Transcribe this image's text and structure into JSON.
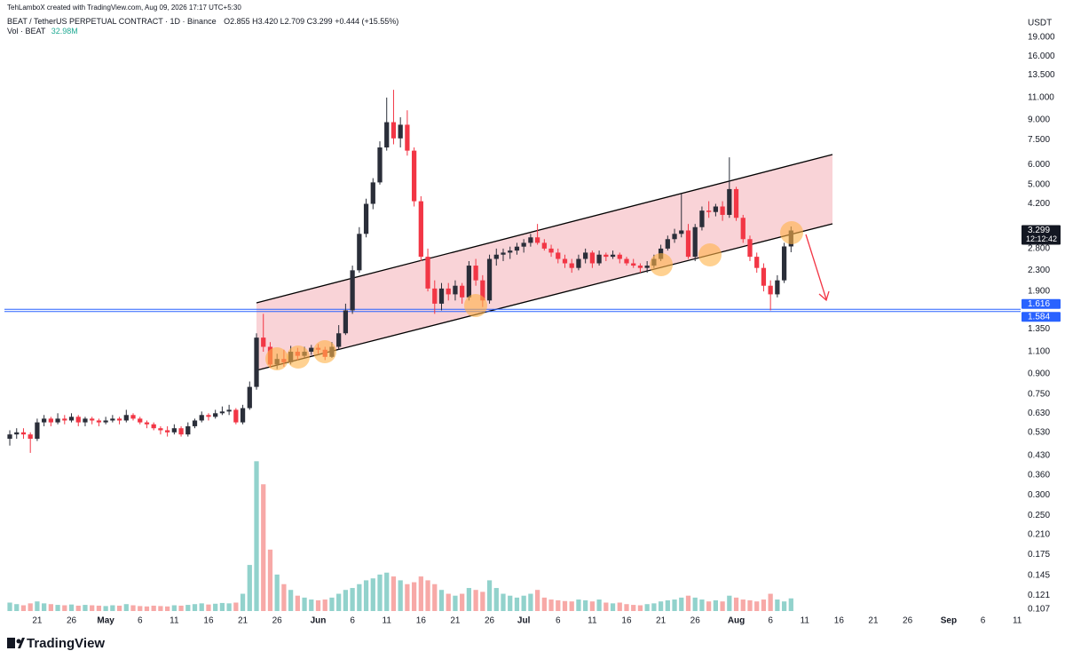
{
  "chart_data": {
    "type": "candlestick",
    "attribution": "TehLamboX created with TradingView.com, Aug 09, 2026 17:17 UTC+5:30",
    "title": "BEAT / TetherUS PERPETUAL CONTRACT · 1D · Binance",
    "ohlc": "O2.855 H3.420 L2.709 C3.299 +0.444 (+15.55%)",
    "volume_label": "Vol · BEAT",
    "volume_value": "32.98M",
    "currency": "USDT",
    "countdown": "12:12:42",
    "brand": "TradingView",
    "log_scale": true,
    "grid": false,
    "up_color": "#2a2e39",
    "down_color": "#f23645",
    "ylim": [
      0.105,
      22.3
    ],
    "yticks": [
      {
        "value": 19,
        "label": "19.000"
      },
      {
        "value": 16,
        "label": "16.000"
      },
      {
        "value": 13.5,
        "label": "13.500"
      },
      {
        "value": 11,
        "label": "11.000"
      },
      {
        "value": 9,
        "label": "9.000"
      },
      {
        "value": 7.5,
        "label": "7.500"
      },
      {
        "value": 6,
        "label": "6.000"
      },
      {
        "value": 5,
        "label": "5.000"
      },
      {
        "value": 4.2,
        "label": "4.200"
      },
      {
        "value": 2.8,
        "label": "2.800"
      },
      {
        "value": 2.3,
        "label": "2.300"
      },
      {
        "value": 1.9,
        "label": "1.900"
      },
      {
        "value": 1.35,
        "label": "1.350"
      },
      {
        "value": 1.1,
        "label": "1.100"
      },
      {
        "value": 0.9,
        "label": "0.900"
      },
      {
        "value": 0.75,
        "label": "0.750"
      },
      {
        "value": 0.63,
        "label": "0.630"
      },
      {
        "value": 0.53,
        "label": "0.530"
      },
      {
        "value": 0.43,
        "label": "0.430"
      },
      {
        "value": 0.36,
        "label": "0.360"
      },
      {
        "value": 0.3,
        "label": "0.300"
      },
      {
        "value": 0.25,
        "label": "0.250"
      },
      {
        "value": 0.21,
        "label": "0.210"
      },
      {
        "value": 0.175,
        "label": "0.175"
      },
      {
        "value": 0.145,
        "label": "0.145"
      },
      {
        "value": 0.121,
        "label": "0.121"
      },
      {
        "value": 0.107,
        "label": "0.107"
      }
    ],
    "xlim": [
      -0.78,
      147.5
    ],
    "xticks": [
      {
        "value": 4,
        "label": "21"
      },
      {
        "value": 9,
        "label": "26"
      },
      {
        "value": 14,
        "label": "May"
      },
      {
        "value": 19,
        "label": "6"
      },
      {
        "value": 24,
        "label": "11"
      },
      {
        "value": 29,
        "label": "16"
      },
      {
        "value": 34,
        "label": "21"
      },
      {
        "value": 39,
        "label": "26"
      },
      {
        "value": 45,
        "label": "Jun"
      },
      {
        "value": 50,
        "label": "6"
      },
      {
        "value": 55,
        "label": "11"
      },
      {
        "value": 60,
        "label": "16"
      },
      {
        "value": 65,
        "label": "21"
      },
      {
        "value": 70,
        "label": "26"
      },
      {
        "value": 75,
        "label": "Jul"
      },
      {
        "value": 80,
        "label": "6"
      },
      {
        "value": 85,
        "label": "11"
      },
      {
        "value": 90,
        "label": "16"
      },
      {
        "value": 95,
        "label": "21"
      },
      {
        "value": 100,
        "label": "26"
      },
      {
        "value": 106,
        "label": "Aug"
      },
      {
        "value": 111,
        "label": "6"
      },
      {
        "value": 116,
        "label": "11"
      },
      {
        "value": 121,
        "label": "16"
      },
      {
        "value": 126,
        "label": "21"
      },
      {
        "value": 131,
        "label": "26"
      },
      {
        "value": 137,
        "label": "Sep"
      },
      {
        "value": 142,
        "label": "6"
      },
      {
        "value": 147,
        "label": "11"
      }
    ],
    "hlines": [
      1.616,
      1.584
    ],
    "hline_color": "#2962ff",
    "series": [
      {
        "name": "BEAT",
        "x": [
          0,
          1,
          2,
          3,
          4,
          5,
          6,
          7,
          8,
          9,
          10,
          11,
          12,
          13,
          14,
          15,
          16,
          17,
          18,
          19,
          20,
          21,
          22,
          23,
          24,
          25,
          26,
          27,
          28,
          29,
          30,
          31,
          32,
          33,
          34,
          35,
          36,
          37,
          38,
          39,
          40,
          41,
          42,
          43,
          44,
          45,
          46,
          47,
          48,
          49,
          50,
          51,
          52,
          53,
          54,
          55,
          56,
          57,
          58,
          59,
          60,
          61,
          62,
          63,
          64,
          65,
          66,
          67,
          68,
          69,
          70,
          71,
          72,
          73,
          74,
          75,
          76,
          77,
          78,
          79,
          80,
          81,
          82,
          83,
          84,
          85,
          86,
          87,
          88,
          89,
          90,
          91,
          92,
          93,
          94,
          95,
          96,
          97,
          98,
          99,
          100,
          101,
          102,
          103,
          104,
          105,
          106,
          107,
          108,
          109,
          110,
          111,
          112,
          113,
          114
        ],
        "open": [
          0.5,
          0.52,
          0.53,
          0.52,
          0.5,
          0.58,
          0.6,
          0.58,
          0.6,
          0.59,
          0.61,
          0.58,
          0.6,
          0.59,
          0.58,
          0.59,
          0.6,
          0.59,
          0.62,
          0.6,
          0.58,
          0.57,
          0.55,
          0.54,
          0.53,
          0.55,
          0.52,
          0.56,
          0.59,
          0.62,
          0.61,
          0.63,
          0.64,
          0.65,
          0.58,
          0.66,
          0.8,
          1.25,
          1.15,
          0.98,
          1.03,
          1.0,
          1.1,
          1.06,
          1.1,
          1.14,
          1.12,
          1.05,
          1.15,
          1.3,
          1.6,
          2.3,
          3.2,
          4.2,
          5.1,
          7.0,
          8.8,
          7.6,
          8.6,
          6.8,
          4.3,
          2.6,
          1.95,
          1.7,
          1.95,
          1.85,
          2.0,
          1.8,
          2.4,
          2.1,
          1.75,
          2.55,
          2.65,
          2.7,
          2.75,
          2.85,
          2.95,
          3.1,
          2.95,
          2.8,
          2.7,
          2.55,
          2.45,
          2.35,
          2.55,
          2.7,
          2.45,
          2.65,
          2.6,
          2.65,
          2.55,
          2.45,
          2.4,
          2.35,
          2.4,
          2.55,
          2.8,
          3.05,
          3.2,
          3.3,
          2.6,
          3.4,
          3.95,
          3.9,
          4.1,
          3.8,
          4.8,
          3.7,
          3.05,
          2.6,
          2.35,
          2.0,
          1.85,
          2.1,
          2.855
        ],
        "high": [
          0.54,
          0.55,
          0.55,
          0.53,
          0.6,
          0.62,
          0.61,
          0.63,
          0.62,
          0.63,
          0.62,
          0.61,
          0.61,
          0.6,
          0.61,
          0.62,
          0.61,
          0.65,
          0.63,
          0.61,
          0.59,
          0.58,
          0.56,
          0.56,
          0.57,
          0.56,
          0.58,
          0.6,
          0.64,
          0.63,
          0.65,
          0.67,
          0.68,
          0.66,
          0.68,
          0.84,
          1.3,
          1.55,
          1.2,
          1.08,
          1.12,
          1.16,
          1.14,
          1.15,
          1.17,
          1.18,
          1.15,
          1.2,
          1.4,
          1.7,
          2.4,
          3.4,
          4.4,
          5.3,
          7.4,
          11.0,
          11.8,
          9.2,
          9.8,
          7.0,
          4.5,
          2.8,
          2.1,
          2.05,
          2.05,
          2.1,
          2.05,
          2.5,
          2.55,
          2.2,
          2.65,
          2.8,
          2.8,
          2.85,
          2.95,
          3.05,
          3.2,
          3.5,
          3.05,
          2.9,
          2.8,
          2.65,
          2.55,
          2.65,
          2.8,
          2.75,
          2.75,
          2.7,
          2.75,
          2.7,
          2.6,
          2.55,
          2.45,
          2.5,
          2.65,
          2.9,
          3.15,
          3.35,
          4.6,
          3.5,
          3.5,
          4.1,
          4.3,
          4.2,
          4.3,
          6.4,
          4.9,
          3.8,
          3.15,
          2.7,
          2.45,
          2.1,
          2.2,
          2.95,
          3.42
        ],
        "low": [
          0.47,
          0.5,
          0.5,
          0.44,
          0.49,
          0.56,
          0.56,
          0.57,
          0.57,
          0.58,
          0.56,
          0.56,
          0.57,
          0.56,
          0.57,
          0.58,
          0.57,
          0.58,
          0.59,
          0.57,
          0.55,
          0.54,
          0.52,
          0.51,
          0.52,
          0.51,
          0.51,
          0.55,
          0.58,
          0.59,
          0.6,
          0.62,
          0.62,
          0.57,
          0.57,
          0.65,
          0.78,
          1.1,
          0.95,
          0.94,
          0.96,
          0.98,
          1.02,
          1.04,
          1.07,
          1.08,
          1.02,
          1.04,
          1.12,
          1.28,
          1.55,
          2.25,
          3.1,
          4.0,
          5.0,
          6.8,
          7.2,
          7.0,
          6.5,
          4.1,
          2.5,
          1.9,
          1.55,
          1.6,
          1.75,
          1.75,
          1.7,
          1.75,
          2.0,
          1.65,
          1.7,
          2.4,
          2.5,
          2.55,
          2.65,
          2.7,
          2.85,
          2.9,
          2.75,
          2.6,
          2.45,
          2.35,
          2.25,
          2.3,
          2.45,
          2.35,
          2.4,
          2.5,
          2.55,
          2.45,
          2.4,
          2.35,
          2.25,
          2.25,
          2.35,
          2.5,
          2.75,
          2.95,
          3.1,
          2.55,
          2.5,
          3.3,
          3.7,
          3.75,
          3.6,
          3.7,
          3.6,
          2.95,
          2.5,
          2.25,
          1.9,
          1.6,
          1.8,
          2.05,
          2.709
        ],
        "close": [
          0.52,
          0.53,
          0.52,
          0.5,
          0.58,
          0.6,
          0.58,
          0.6,
          0.59,
          0.61,
          0.58,
          0.6,
          0.59,
          0.58,
          0.59,
          0.6,
          0.59,
          0.62,
          0.6,
          0.58,
          0.57,
          0.55,
          0.54,
          0.53,
          0.55,
          0.52,
          0.56,
          0.59,
          0.62,
          0.61,
          0.63,
          0.64,
          0.65,
          0.58,
          0.66,
          0.8,
          1.25,
          1.15,
          0.98,
          1.03,
          1.0,
          1.1,
          1.06,
          1.1,
          1.14,
          1.12,
          1.05,
          1.15,
          1.3,
          1.6,
          2.3,
          3.2,
          4.2,
          5.1,
          7.0,
          8.8,
          7.6,
          8.6,
          6.8,
          4.3,
          2.6,
          1.95,
          1.7,
          1.95,
          1.85,
          2.0,
          1.8,
          2.4,
          2.1,
          1.75,
          2.55,
          2.65,
          2.7,
          2.75,
          2.85,
          2.95,
          3.1,
          2.95,
          2.8,
          2.7,
          2.55,
          2.45,
          2.35,
          2.55,
          2.7,
          2.45,
          2.65,
          2.6,
          2.65,
          2.55,
          2.45,
          2.4,
          2.35,
          2.4,
          2.55,
          2.8,
          3.05,
          3.2,
          3.3,
          2.6,
          3.4,
          3.95,
          3.9,
          4.1,
          3.8,
          4.8,
          3.7,
          3.05,
          2.6,
          2.35,
          2.0,
          1.85,
          2.1,
          2.855,
          3.299
        ]
      }
    ],
    "volume": {
      "ylim": [
        0,
        400
      ],
      "up_color": "#92d2cc",
      "down_color": "#f7a9a7",
      "values": [
        22,
        18,
        15,
        20,
        25,
        20,
        18,
        16,
        15,
        17,
        14,
        16,
        15,
        14,
        13,
        15,
        14,
        18,
        15,
        13,
        12,
        14,
        13,
        12,
        15,
        14,
        16,
        18,
        20,
        17,
        19,
        21,
        20,
        22,
        45,
        120,
        390,
        330,
        160,
        95,
        70,
        55,
        40,
        35,
        30,
        28,
        30,
        35,
        45,
        55,
        60,
        70,
        80,
        85,
        95,
        100,
        90,
        80,
        70,
        75,
        90,
        80,
        70,
        55,
        45,
        40,
        45,
        60,
        55,
        50,
        80,
        60,
        45,
        40,
        35,
        40,
        45,
        55,
        35,
        30,
        28,
        26,
        25,
        30,
        28,
        25,
        30,
        22,
        20,
        22,
        18,
        16,
        15,
        18,
        20,
        25,
        28,
        30,
        35,
        40,
        35,
        30,
        25,
        28,
        25,
        40,
        35,
        30,
        28,
        25,
        30,
        45,
        30,
        25,
        32.98
      ]
    }
  }
}
